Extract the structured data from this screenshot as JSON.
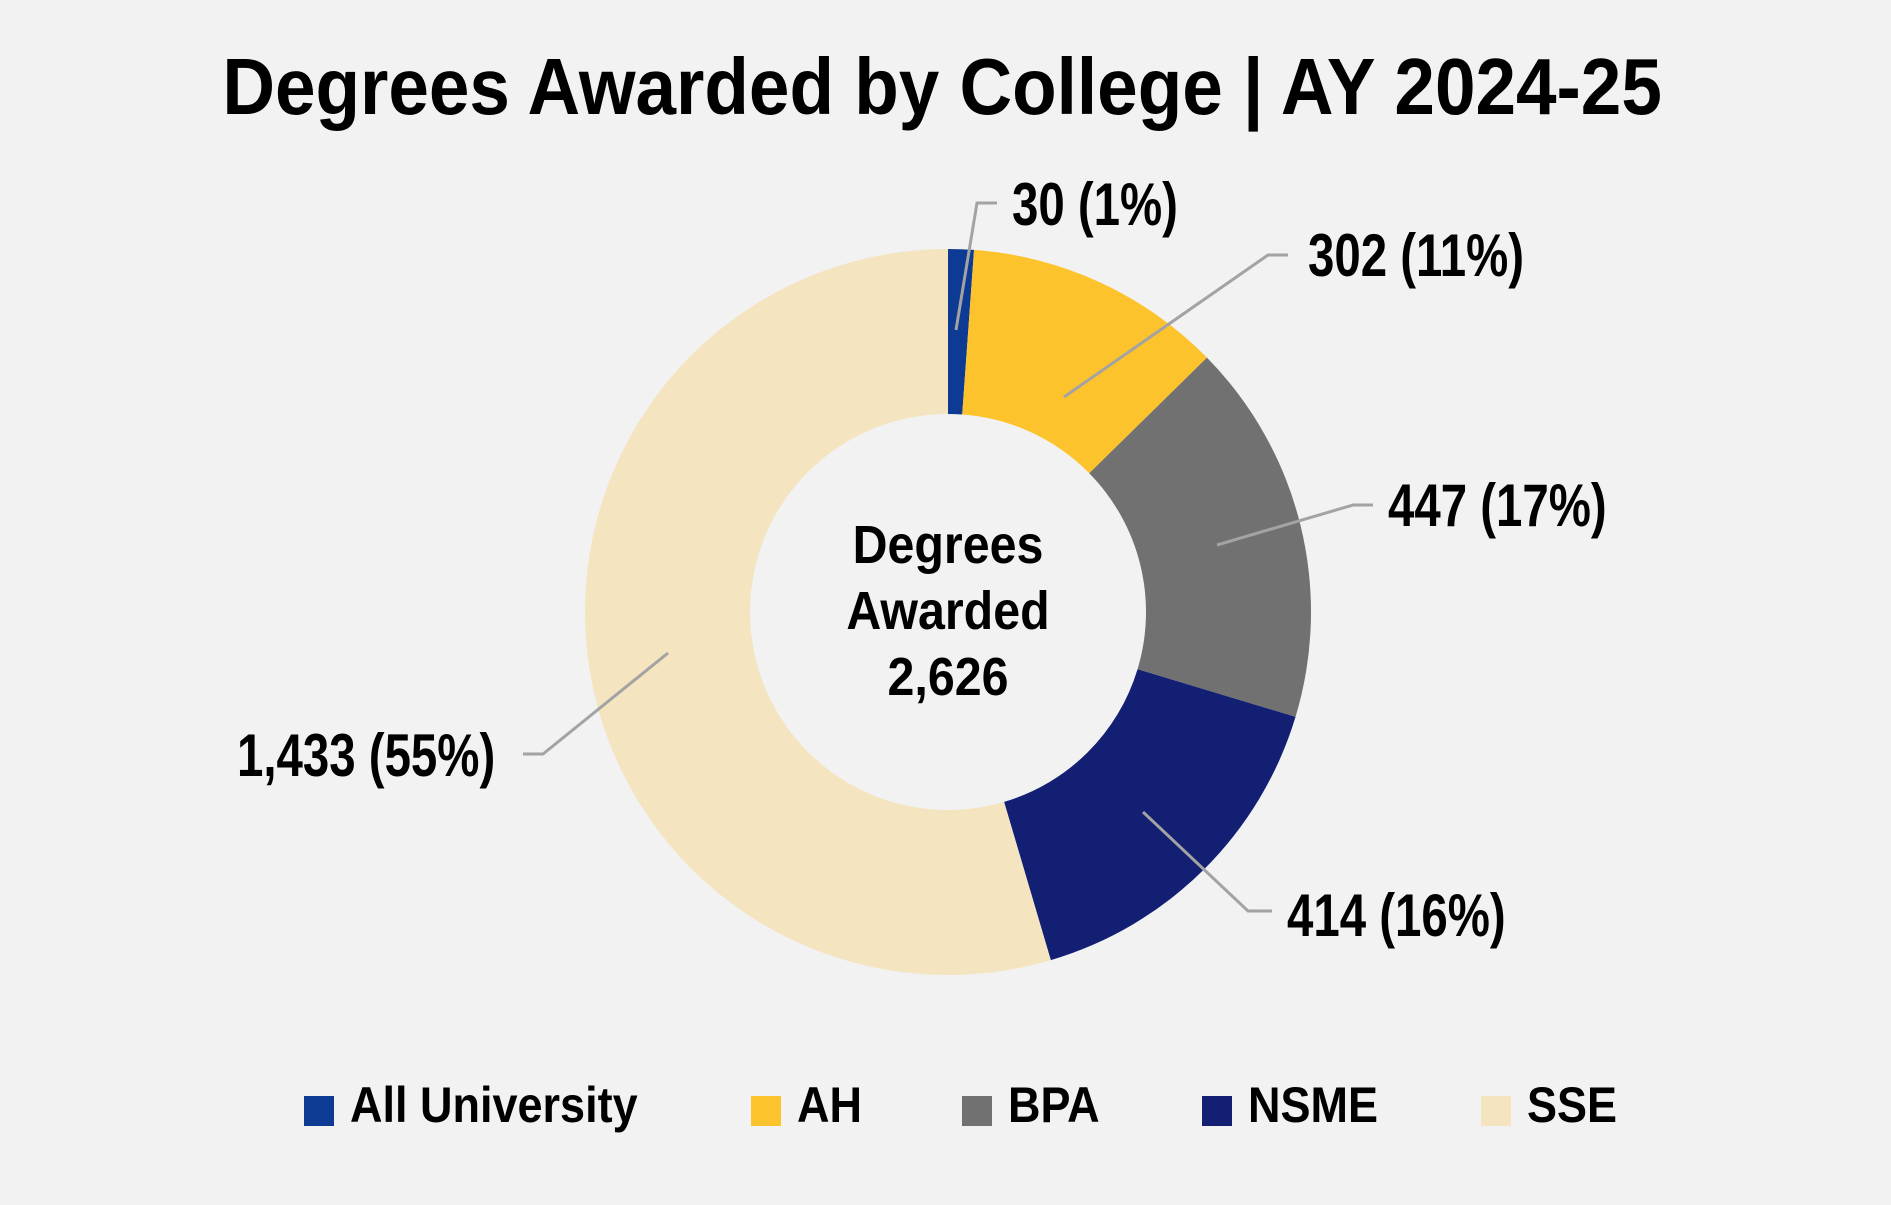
{
  "title": "Degrees Awarded by College | AY 2024-25",
  "chart_data": {
    "type": "donut",
    "title": "Degrees Awarded by College | AY 2024-25",
    "center_label": {
      "line1": "Degrees",
      "line2": "Awarded",
      "total": "2,626"
    },
    "total_value": 2626,
    "categories": [
      "All University",
      "AH",
      "BPA",
      "NSME",
      "SSE"
    ],
    "series": [
      {
        "name": "All University",
        "value": 30,
        "percent": 1,
        "label": "30 (1%)",
        "color": "#0d3b94"
      },
      {
        "name": "AH",
        "value": 302,
        "percent": 11,
        "label": "302 (11%)",
        "color": "#fdc32c"
      },
      {
        "name": "BPA",
        "value": 447,
        "percent": 17,
        "label": "447 (17%)",
        "color": "#717171"
      },
      {
        "name": "NSME",
        "value": 414,
        "percent": 16,
        "label": "414 (16%)",
        "color": "#121f73"
      },
      {
        "name": "SSE",
        "value": 1433,
        "percent": 55,
        "label": "1,433 (55%)",
        "color": "#f4e4c0"
      }
    ],
    "legend_position": "bottom",
    "background": "#f2f2f2",
    "leader_line_color": "#a3a3a3"
  }
}
